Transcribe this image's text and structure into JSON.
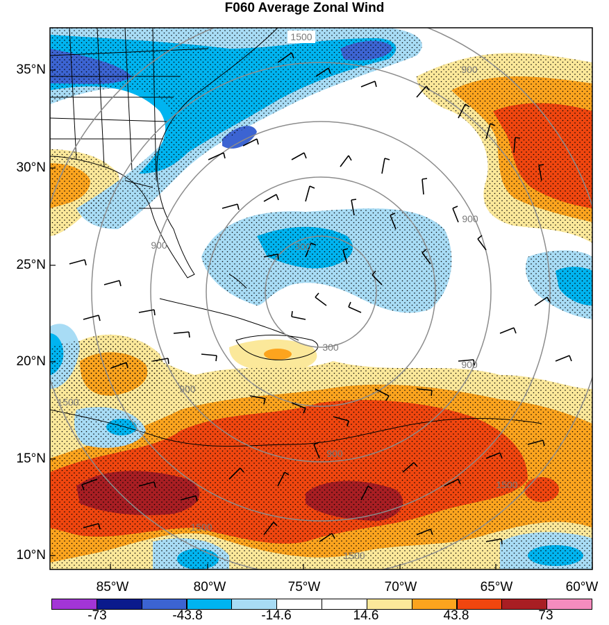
{
  "title": "F060 Average Zonal Wind",
  "lat_labels": [
    "35°N",
    "30°N",
    "25°N",
    "20°N",
    "15°N",
    "10°N"
  ],
  "lon_labels": [
    "85°W",
    "80°W",
    "75°W",
    "70°W",
    "65°W",
    "60°W"
  ],
  "height_contours": [
    "1500",
    "900",
    "900",
    "300",
    "900",
    "900",
    "900",
    "1500",
    "1500",
    "900",
    "1500",
    "300",
    "1500"
  ],
  "colorbar": {
    "colors": [
      "#a335d6",
      "#0a1a8c",
      "#3c64d2",
      "#00b4f0",
      "#a8dcf5",
      "#ffffff",
      "#ffffff",
      "#fbe89a",
      "#fca41e",
      "#f0460f",
      "#a81e23",
      "#f58cbe"
    ],
    "labels": [
      "-73",
      "-43.8",
      "-14.6",
      "14.6",
      "43.8",
      "73"
    ]
  },
  "colors": {
    "strong_negative": "#3c64d2",
    "negative": "#00b4f0",
    "weak_negative": "#a8dcf5",
    "weak_positive": "#fbe89a",
    "positive": "#fca41e",
    "strong_positive": "#f0460f",
    "very_strong_positive": "#a81e23",
    "contour": "#8c8c8c"
  }
}
